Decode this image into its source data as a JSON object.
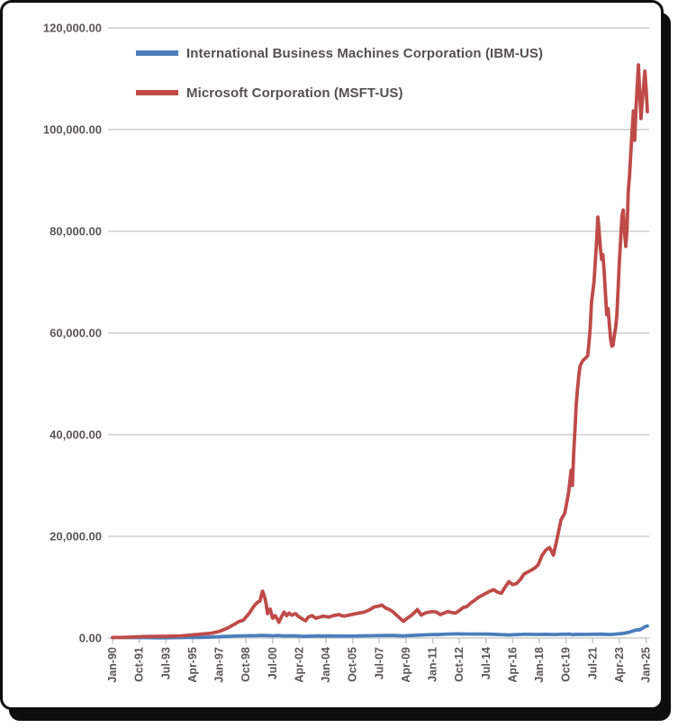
{
  "chart_data": {
    "type": "line",
    "title": "",
    "xlabel": "",
    "ylabel": "",
    "grid": "horizontal",
    "legend_position": "top-left-inside",
    "ylim": [
      0,
      120000
    ],
    "y_ticks": [
      120000,
      100000,
      80000,
      60000,
      40000,
      20000,
      0
    ],
    "y_tick_labels": [
      "120,000.00",
      "100,000.00",
      "80,000.00",
      "60,000.00",
      "40,000.00",
      "20,000.00",
      "0.00"
    ],
    "x_unit": "months since Jan-1990",
    "x_tick_months": [
      0,
      21,
      42,
      63,
      84,
      105,
      126,
      147,
      168,
      189,
      210,
      231,
      252,
      273,
      294,
      315,
      336,
      357,
      378,
      399,
      420
    ],
    "x_tick_labels": [
      "Jan-90",
      "Oct-91",
      "Jul-93",
      "Apr-95",
      "Jan-97",
      "Oct-98",
      "Jul-00",
      "Apr-02",
      "Jan-04",
      "Oct-05",
      "Jul-07",
      "Apr-09",
      "Jan-11",
      "Oct-12",
      "Jul-14",
      "Apr-16",
      "Jan-18",
      "Oct-19",
      "Jul-21",
      "Apr-23",
      "Jan-25"
    ],
    "series": [
      {
        "name": "International Business Machines Corporation (IBM-US)",
        "color": "#4A7EBB",
        "points": [
          [
            0,
            100
          ],
          [
            6,
            100
          ],
          [
            12,
            95
          ],
          [
            18,
            90
          ],
          [
            24,
            85
          ],
          [
            30,
            70
          ],
          [
            36,
            60
          ],
          [
            42,
            52
          ],
          [
            48,
            70
          ],
          [
            54,
            85
          ],
          [
            60,
            100
          ],
          [
            66,
            120
          ],
          [
            72,
            150
          ],
          [
            78,
            190
          ],
          [
            84,
            260
          ],
          [
            90,
            320
          ],
          [
            96,
            380
          ],
          [
            102,
            420
          ],
          [
            108,
            460
          ],
          [
            112,
            440
          ],
          [
            116,
            490
          ],
          [
            119,
            510
          ],
          [
            122,
            470
          ],
          [
            126,
            430
          ],
          [
            130,
            490
          ],
          [
            134,
            430
          ],
          [
            138,
            410
          ],
          [
            142,
            450
          ],
          [
            146,
            390
          ],
          [
            150,
            330
          ],
          [
            154,
            350
          ],
          [
            158,
            390
          ],
          [
            162,
            400
          ],
          [
            166,
            390
          ],
          [
            170,
            400
          ],
          [
            174,
            385
          ],
          [
            178,
            395
          ],
          [
            182,
            370
          ],
          [
            186,
            380
          ],
          [
            190,
            370
          ],
          [
            194,
            405
          ],
          [
            198,
            420
          ],
          [
            202,
            440
          ],
          [
            206,
            460
          ],
          [
            210,
            480
          ],
          [
            214,
            500
          ],
          [
            218,
            490
          ],
          [
            222,
            500
          ],
          [
            226,
            440
          ],
          [
            229,
            410
          ],
          [
            232,
            460
          ],
          [
            236,
            520
          ],
          [
            240,
            560
          ],
          [
            244,
            600
          ],
          [
            248,
            640
          ],
          [
            252,
            690
          ],
          [
            256,
            670
          ],
          [
            260,
            720
          ],
          [
            264,
            780
          ],
          [
            268,
            800
          ],
          [
            272,
            820
          ],
          [
            276,
            800
          ],
          [
            280,
            780
          ],
          [
            284,
            770
          ],
          [
            288,
            780
          ],
          [
            292,
            770
          ],
          [
            296,
            760
          ],
          [
            300,
            720
          ],
          [
            304,
            680
          ],
          [
            308,
            640
          ],
          [
            312,
            610
          ],
          [
            316,
            650
          ],
          [
            320,
            690
          ],
          [
            324,
            720
          ],
          [
            328,
            730
          ],
          [
            332,
            710
          ],
          [
            336,
            700
          ],
          [
            340,
            720
          ],
          [
            344,
            710
          ],
          [
            348,
            690
          ],
          [
            352,
            720
          ],
          [
            356,
            740
          ],
          [
            360,
            760
          ],
          [
            362,
            660
          ],
          [
            364,
            700
          ],
          [
            368,
            730
          ],
          [
            372,
            710
          ],
          [
            376,
            730
          ],
          [
            380,
            740
          ],
          [
            384,
            760
          ],
          [
            388,
            720
          ],
          [
            391,
            690
          ],
          [
            394,
            730
          ],
          [
            397,
            790
          ],
          [
            400,
            850
          ],
          [
            403,
            950
          ],
          [
            406,
            1100
          ],
          [
            408,
            1250
          ],
          [
            410,
            1400
          ],
          [
            412,
            1550
          ],
          [
            414,
            1650
          ],
          [
            415,
            1600
          ],
          [
            416,
            1750
          ],
          [
            418,
            2050
          ],
          [
            419,
            2200
          ],
          [
            420,
            2300
          ],
          [
            421,
            2350
          ]
        ]
      },
      {
        "name": "Microsoft Corporation (MSFT-US)",
        "color": "#BE4B48",
        "points": [
          [
            0,
            100
          ],
          [
            6,
            115
          ],
          [
            12,
            160
          ],
          [
            18,
            210
          ],
          [
            24,
            290
          ],
          [
            30,
            305
          ],
          [
            36,
            340
          ],
          [
            42,
            315
          ],
          [
            48,
            370
          ],
          [
            54,
            430
          ],
          [
            60,
            540
          ],
          [
            66,
            670
          ],
          [
            72,
            810
          ],
          [
            78,
            960
          ],
          [
            84,
            1300
          ],
          [
            90,
            1900
          ],
          [
            96,
            2700
          ],
          [
            100,
            3300
          ],
          [
            103,
            3500
          ],
          [
            106,
            4400
          ],
          [
            108,
            5000
          ],
          [
            110,
            5800
          ],
          [
            112,
            6500
          ],
          [
            114,
            7000
          ],
          [
            116,
            7300
          ],
          [
            118,
            9200
          ],
          [
            119,
            8600
          ],
          [
            120,
            7800
          ],
          [
            121,
            6600
          ],
          [
            122,
            4800
          ],
          [
            124,
            5700
          ],
          [
            126,
            3900
          ],
          [
            128,
            4400
          ],
          [
            130,
            3600
          ],
          [
            131,
            3100
          ],
          [
            133,
            4200
          ],
          [
            135,
            5100
          ],
          [
            137,
            4400
          ],
          [
            139,
            4900
          ],
          [
            141,
            4500
          ],
          [
            144,
            4800
          ],
          [
            146,
            4300
          ],
          [
            149,
            3800
          ],
          [
            152,
            3400
          ],
          [
            154,
            4100
          ],
          [
            157,
            4400
          ],
          [
            160,
            3900
          ],
          [
            163,
            4100
          ],
          [
            166,
            4300
          ],
          [
            170,
            4100
          ],
          [
            174,
            4400
          ],
          [
            178,
            4600
          ],
          [
            182,
            4300
          ],
          [
            186,
            4500
          ],
          [
            190,
            4700
          ],
          [
            194,
            4900
          ],
          [
            198,
            5100
          ],
          [
            202,
            5500
          ],
          [
            206,
            6100
          ],
          [
            210,
            6300
          ],
          [
            212,
            6500
          ],
          [
            215,
            5900
          ],
          [
            218,
            5600
          ],
          [
            221,
            5100
          ],
          [
            224,
            4400
          ],
          [
            227,
            3700
          ],
          [
            229,
            3300
          ],
          [
            232,
            3900
          ],
          [
            235,
            4400
          ],
          [
            238,
            5100
          ],
          [
            240,
            5600
          ],
          [
            243,
            4500
          ],
          [
            246,
            4900
          ],
          [
            249,
            5100
          ],
          [
            252,
            5200
          ],
          [
            255,
            5100
          ],
          [
            258,
            4600
          ],
          [
            261,
            4900
          ],
          [
            264,
            5200
          ],
          [
            267,
            5000
          ],
          [
            270,
            4900
          ],
          [
            273,
            5400
          ],
          [
            276,
            6000
          ],
          [
            279,
            6200
          ],
          [
            282,
            6900
          ],
          [
            285,
            7400
          ],
          [
            288,
            8000
          ],
          [
            291,
            8400
          ],
          [
            294,
            8800
          ],
          [
            297,
            9200
          ],
          [
            300,
            9500
          ],
          [
            303,
            9000
          ],
          [
            306,
            8800
          ],
          [
            309,
            10000
          ],
          [
            312,
            11100
          ],
          [
            315,
            10500
          ],
          [
            318,
            10700
          ],
          [
            321,
            11500
          ],
          [
            324,
            12600
          ],
          [
            327,
            13000
          ],
          [
            330,
            13400
          ],
          [
            333,
            13900
          ],
          [
            335,
            14400
          ],
          [
            338,
            16200
          ],
          [
            341,
            17300
          ],
          [
            344,
            17800
          ],
          [
            347,
            16300
          ],
          [
            350,
            19600
          ],
          [
            353,
            23200
          ],
          [
            356,
            24600
          ],
          [
            359,
            28600
          ],
          [
            361,
            33000
          ],
          [
            362,
            30000
          ],
          [
            363,
            36500
          ],
          [
            364,
            41000
          ],
          [
            365,
            46000
          ],
          [
            366,
            49000
          ],
          [
            367,
            51500
          ],
          [
            368,
            53500
          ],
          [
            370,
            54500
          ],
          [
            372,
            55000
          ],
          [
            374,
            55500
          ],
          [
            375,
            58000
          ],
          [
            376,
            61000
          ],
          [
            377,
            66000
          ],
          [
            379,
            70000
          ],
          [
            381,
            78000
          ],
          [
            382,
            82800
          ],
          [
            383,
            80000
          ],
          [
            384,
            76600
          ],
          [
            385,
            74500
          ],
          [
            386,
            75400
          ],
          [
            387,
            72000
          ],
          [
            388,
            67800
          ],
          [
            389,
            63600
          ],
          [
            390,
            64800
          ],
          [
            392,
            58900
          ],
          [
            393,
            57400
          ],
          [
            394,
            57600
          ],
          [
            395,
            59500
          ],
          [
            396,
            61000
          ],
          [
            397,
            63500
          ],
          [
            399,
            74000
          ],
          [
            401,
            83000
          ],
          [
            402,
            84200
          ],
          [
            403,
            80000
          ],
          [
            404,
            77000
          ],
          [
            405,
            80500
          ],
          [
            406,
            88000
          ],
          [
            407,
            91000
          ],
          [
            408,
            95500
          ],
          [
            409,
            99800
          ],
          [
            410,
            103700
          ],
          [
            411,
            97900
          ],
          [
            412,
            104000
          ],
          [
            413,
            108500
          ],
          [
            414,
            112700
          ],
          [
            415,
            107000
          ],
          [
            416,
            102200
          ],
          [
            417,
            105500
          ],
          [
            418,
            108500
          ],
          [
            419,
            111500
          ],
          [
            420,
            108000
          ],
          [
            421,
            103500
          ]
        ]
      }
    ],
    "colors": {
      "ibm_line": "#4A7EBB",
      "msft_line": "#BE4B48",
      "gridline": "#D4D4D4",
      "tick": "#C6C6C6",
      "axis_text": "#5a5558",
      "frame_border": "#0d0d0d",
      "background": "#ffffff"
    }
  }
}
